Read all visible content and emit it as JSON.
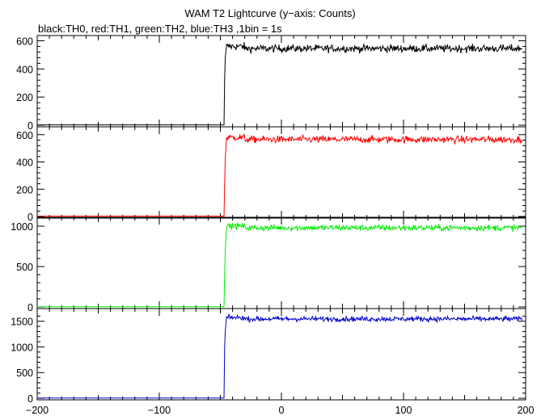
{
  "chart_data": {
    "type": "line",
    "title": "WAM T2 Lightcurve (y−axis: Counts)",
    "subtitle": "black:TH0, red:TH1, green:TH2, blue:TH3 ,1bin = 1s",
    "xlim": [
      -200,
      200
    ],
    "x_ticks": [
      -200,
      -100,
      0,
      100,
      200
    ],
    "x_tick_labels": [
      "−200",
      "−100",
      "0",
      "100",
      "200"
    ],
    "bin_seconds": 1,
    "grid": false,
    "panels": [
      {
        "name": "TH0",
        "color": "#000000",
        "ylim": [
          0,
          620
        ],
        "y_ticks": [
          0,
          200,
          400,
          600
        ],
        "y_tick_labels": [
          "0",
          "200",
          "400",
          "600"
        ],
        "pre_level": 2,
        "onset_x": -47,
        "rise_points": [
          [
            -47,
            2
          ],
          [
            -46.5,
            330
          ],
          [
            -46,
            480
          ],
          [
            -45,
            560
          ]
        ],
        "post_level": 545,
        "post_noise": 25,
        "post_start_x": -45,
        "end_x": 197
      },
      {
        "name": "TH1",
        "color": "#ff0000",
        "ylim": [
          0,
          640
        ],
        "y_ticks": [
          0,
          200,
          400,
          600
        ],
        "y_tick_labels": [
          "0",
          "200",
          "400",
          "600"
        ],
        "pre_level": 2,
        "onset_x": -47,
        "rise_points": [
          [
            -47,
            2
          ],
          [
            -46.5,
            240
          ],
          [
            -46,
            420
          ],
          [
            -45,
            575
          ]
        ],
        "post_level": 565,
        "post_noise": 24,
        "post_start_x": -45,
        "end_x": 197
      },
      {
        "name": "TH2",
        "color": "#00ee00",
        "ylim": [
          0,
          1080
        ],
        "y_ticks": [
          0,
          500,
          1000
        ],
        "y_tick_labels": [
          "0",
          "500",
          "1000"
        ],
        "pre_level": 3,
        "onset_x": -47,
        "rise_points": [
          [
            -47,
            3
          ],
          [
            -46.5,
            400
          ],
          [
            -46,
            700
          ],
          [
            -45,
            960
          ]
        ],
        "post_level": 980,
        "post_noise": 35,
        "post_start_x": -45,
        "end_x": 197
      },
      {
        "name": "TH3",
        "color": "#0000cc",
        "ylim": [
          0,
          1700
        ],
        "y_ticks": [
          0,
          500,
          1000,
          1500
        ],
        "y_tick_labels": [
          "0",
          "500",
          "1000",
          "1500"
        ],
        "pre_level": 4,
        "onset_x": -47,
        "rise_points": [
          [
            -47,
            4
          ],
          [
            -46.5,
            1000
          ],
          [
            -46,
            1300
          ],
          [
            -45,
            1560
          ]
        ],
        "post_level": 1545,
        "post_noise": 45,
        "post_start_x": -45,
        "end_x": 197
      }
    ]
  }
}
